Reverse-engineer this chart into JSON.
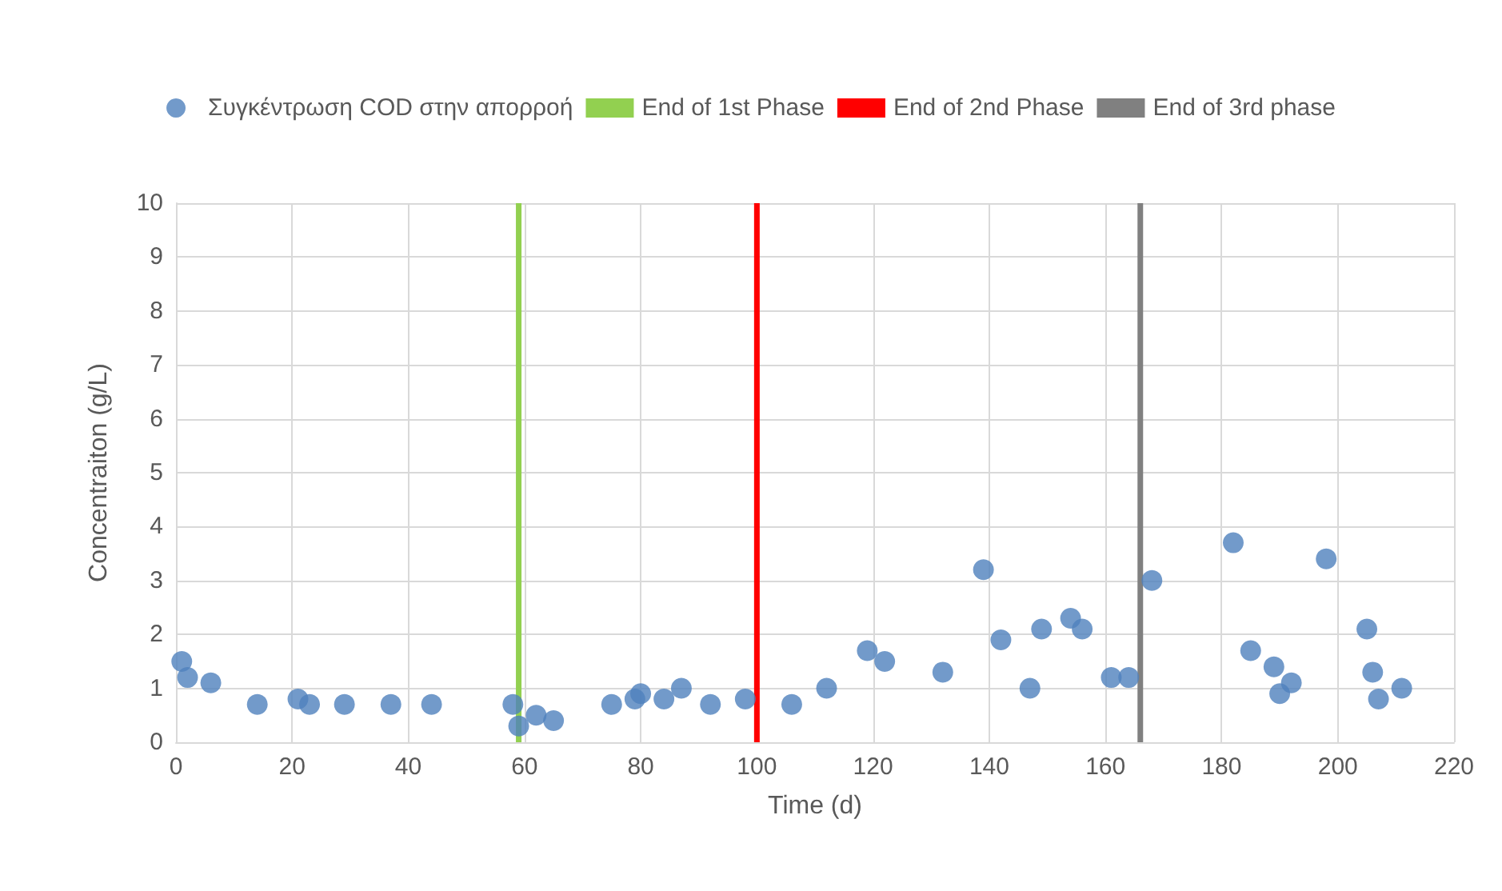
{
  "chart_data": {
    "type": "scatter",
    "xlabel": "Time (d)",
    "ylabel": "Concentraiton (g/L)",
    "xlim": [
      0,
      220
    ],
    "xticks": [
      0,
      20,
      40,
      60,
      80,
      100,
      120,
      140,
      160,
      180,
      200,
      220
    ],
    "ylim": [
      0,
      10
    ],
    "yticks": [
      0,
      1,
      2,
      3,
      4,
      5,
      6,
      7,
      8,
      9,
      10
    ],
    "grid": true,
    "legend": "top",
    "series": [
      {
        "name": "Συγκέντρωση COD στην απορροή",
        "color": "#4f81bd",
        "marker": "circle",
        "x": [
          1,
          2,
          6,
          14,
          21,
          23,
          29,
          37,
          44,
          58,
          59,
          62,
          65,
          75,
          79,
          80,
          84,
          87,
          92,
          98,
          106,
          112,
          119,
          122,
          132,
          139,
          142,
          147,
          149,
          154,
          156,
          161,
          164,
          168,
          182,
          185,
          189,
          190,
          192,
          198,
          205,
          206,
          207,
          211
        ],
        "values": [
          1.5,
          1.2,
          1.1,
          0.7,
          0.8,
          0.7,
          0.7,
          0.7,
          0.7,
          0.7,
          0.3,
          0.5,
          0.4,
          0.7,
          0.8,
          0.9,
          0.8,
          1.0,
          0.7,
          0.8,
          0.7,
          1.0,
          1.7,
          1.5,
          1.3,
          3.2,
          1.9,
          1.0,
          2.1,
          2.3,
          2.1,
          1.2,
          1.2,
          3.0,
          3.7,
          1.7,
          1.4,
          0.9,
          1.1,
          3.4,
          2.1,
          1.3,
          0.8,
          1.0
        ]
      },
      {
        "name": "End of 1st Phase",
        "type": "line",
        "color": "#92d050",
        "marker": "none",
        "x": [
          59,
          59
        ],
        "values": [
          0,
          10
        ]
      },
      {
        "name": "End of 2nd Phase",
        "type": "line",
        "color": "#ff0000",
        "marker": "none",
        "x": [
          100,
          100
        ],
        "values": [
          0,
          10
        ]
      },
      {
        "name": "End of 3rd phase",
        "type": "line",
        "color": "#808080",
        "marker": "none",
        "x": [
          166,
          166
        ],
        "values": [
          0,
          10
        ]
      }
    ]
  }
}
